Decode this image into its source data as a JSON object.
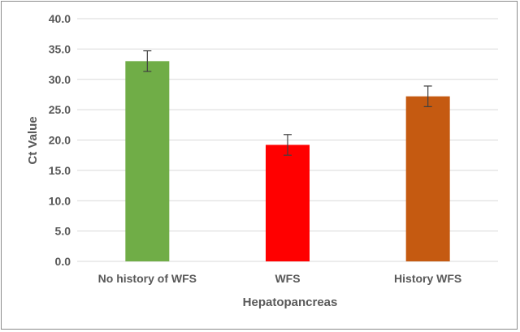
{
  "chart_data": {
    "type": "bar",
    "categories": [
      "No history of WFS",
      "WFS",
      "History WFS"
    ],
    "series": [
      {
        "values": [
          33.0,
          19.2,
          27.2
        ],
        "errors": [
          1.7,
          1.7,
          1.7
        ],
        "colors": [
          "#70ad47",
          "#ff0000",
          "#c55a11"
        ]
      }
    ],
    "title": "",
    "xlabel": "Hepatopancreas",
    "ylabel": "Ct Value",
    "ylim": [
      0,
      40
    ],
    "yticks": [
      "0.0",
      "5.0",
      "10.0",
      "15.0",
      "20.0",
      "25.0",
      "30.0",
      "35.0",
      "40.0"
    ],
    "grid": true,
    "legend": "none"
  }
}
